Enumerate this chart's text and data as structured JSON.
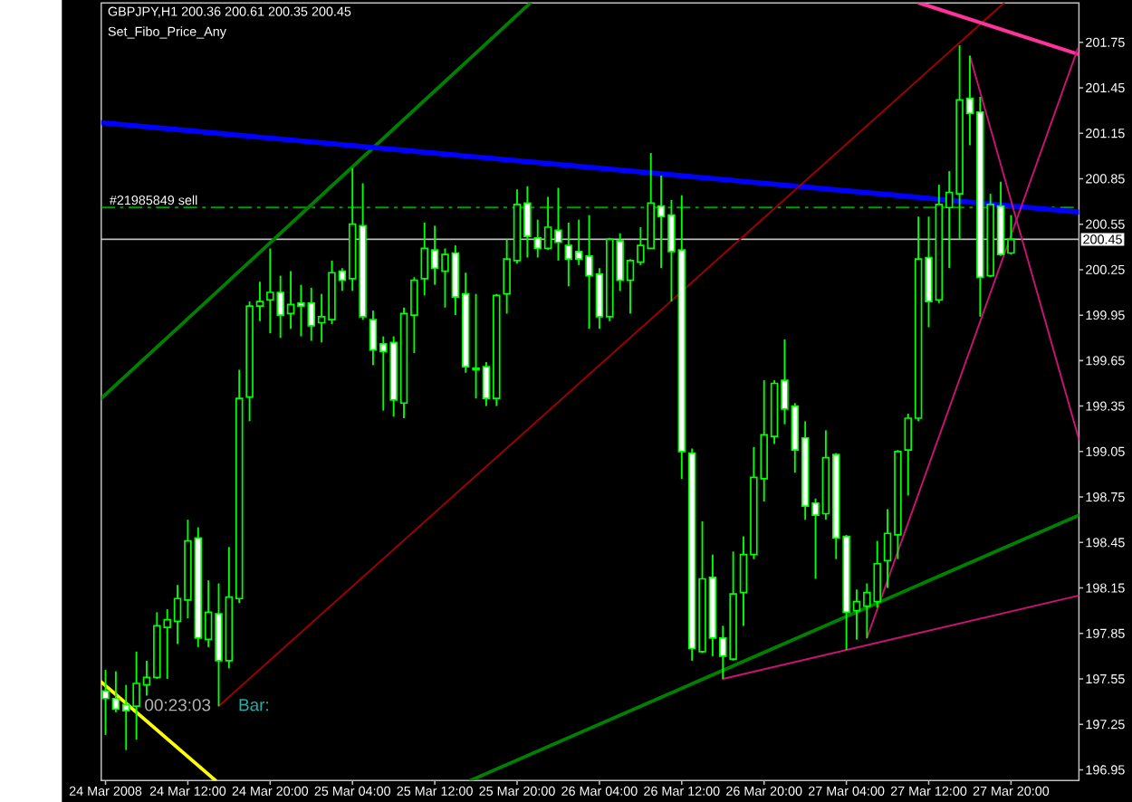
{
  "chart_data": {
    "type": "candlestick",
    "title": "GBPJPY,H1 200.36 200.61 200.35 200.45",
    "subtitle": "Set_Fibo_Price_Any",
    "annotations": [
      "00:23:03",
      "Bar:"
    ],
    "color": "#00ff00",
    "x": [
      "2008-03-24T04:00",
      "2008-03-24T05:00",
      "2008-03-24T06:00",
      "2008-03-24T07:00",
      "2008-03-24T08:00",
      "2008-03-24T09:00",
      "2008-03-24T10:00",
      "2008-03-24T11:00",
      "2008-03-24T12:00",
      "2008-03-24T13:00",
      "2008-03-24T14:00",
      "2008-03-24T15:00",
      "2008-03-24T16:00",
      "2008-03-24T17:00",
      "2008-03-24T18:00",
      "2008-03-24T19:00",
      "2008-03-24T20:00",
      "2008-03-24T21:00",
      "2008-03-24T22:00",
      "2008-03-24T23:00",
      "2008-03-25T00:00",
      "2008-03-25T01:00",
      "2008-03-25T02:00",
      "2008-03-25T03:00",
      "2008-03-25T04:00",
      "2008-03-25T05:00",
      "2008-03-25T06:00",
      "2008-03-25T07:00",
      "2008-03-25T08:00",
      "2008-03-25T09:00",
      "2008-03-25T10:00",
      "2008-03-25T11:00",
      "2008-03-25T12:00",
      "2008-03-25T13:00",
      "2008-03-25T14:00",
      "2008-03-25T15:00",
      "2008-03-25T16:00",
      "2008-03-25T17:00",
      "2008-03-25T18:00",
      "2008-03-25T19:00",
      "2008-03-25T20:00",
      "2008-03-25T21:00",
      "2008-03-25T22:00",
      "2008-03-25T23:00",
      "2008-03-26T00:00",
      "2008-03-26T01:00",
      "2008-03-26T02:00",
      "2008-03-26T03:00",
      "2008-03-26T04:00",
      "2008-03-26T05:00",
      "2008-03-26T06:00",
      "2008-03-26T07:00",
      "2008-03-26T08:00",
      "2008-03-26T09:00",
      "2008-03-26T10:00",
      "2008-03-26T11:00",
      "2008-03-26T12:00",
      "2008-03-26T13:00",
      "2008-03-26T14:00",
      "2008-03-26T15:00",
      "2008-03-26T16:00",
      "2008-03-26T17:00",
      "2008-03-26T18:00",
      "2008-03-26T19:00",
      "2008-03-26T20:00",
      "2008-03-26T21:00",
      "2008-03-26T22:00",
      "2008-03-26T23:00",
      "2008-03-27T00:00",
      "2008-03-27T01:00",
      "2008-03-27T02:00",
      "2008-03-27T03:00",
      "2008-03-27T04:00",
      "2008-03-27T05:00",
      "2008-03-27T06:00",
      "2008-03-27T07:00",
      "2008-03-27T08:00",
      "2008-03-27T09:00",
      "2008-03-27T10:00",
      "2008-03-27T11:00",
      "2008-03-27T12:00",
      "2008-03-27T13:00",
      "2008-03-27T14:00",
      "2008-03-27T15:00",
      "2008-03-27T16:00",
      "2008-03-27T17:00",
      "2008-03-27T18:00",
      "2008-03-27T19:00",
      "2008-03-27T20:00"
    ],
    "ohlc": [
      [
        197.47,
        197.61,
        197.18,
        197.42
      ],
      [
        197.42,
        197.6,
        197.33,
        197.35
      ],
      [
        197.38,
        197.51,
        197.08,
        197.34
      ],
      [
        197.37,
        197.73,
        197.15,
        197.52
      ],
      [
        197.51,
        197.67,
        197.44,
        197.56
      ],
      [
        197.56,
        197.99,
        197.55,
        197.9
      ],
      [
        197.89,
        198.01,
        197.55,
        197.94
      ],
      [
        197.93,
        198.17,
        197.78,
        198.08
      ],
      [
        198.07,
        198.6,
        197.95,
        198.46
      ],
      [
        198.48,
        198.55,
        197.76,
        197.82
      ],
      [
        197.81,
        198.2,
        197.76,
        197.99
      ],
      [
        197.98,
        198.18,
        197.37,
        197.67
      ],
      [
        197.67,
        198.42,
        197.62,
        198.09
      ],
      [
        198.08,
        199.59,
        198.05,
        199.4
      ],
      [
        199.41,
        200.04,
        199.25,
        200.01
      ],
      [
        200.01,
        200.17,
        199.91,
        200.04
      ],
      [
        200.05,
        200.39,
        199.83,
        200.1
      ],
      [
        200.1,
        200.21,
        199.8,
        199.95
      ],
      [
        199.96,
        200.24,
        199.86,
        200.02
      ],
      [
        200.03,
        200.15,
        199.81,
        200.01
      ],
      [
        200.03,
        200.13,
        199.78,
        199.88
      ],
      [
        199.9,
        200.09,
        199.77,
        199.94
      ],
      [
        199.92,
        200.31,
        199.89,
        200.23
      ],
      [
        200.24,
        200.26,
        200.11,
        200.18
      ],
      [
        200.19,
        200.92,
        200.11,
        200.55
      ],
      [
        200.54,
        200.82,
        199.92,
        199.94
      ],
      [
        199.92,
        199.98,
        199.62,
        199.72
      ],
      [
        199.76,
        199.81,
        199.32,
        199.71
      ],
      [
        199.77,
        199.81,
        199.28,
        199.39
      ],
      [
        199.37,
        200.0,
        199.27,
        199.96
      ],
      [
        199.95,
        200.2,
        199.7,
        200.18
      ],
      [
        200.19,
        200.56,
        200.08,
        200.39
      ],
      [
        200.38,
        200.54,
        200.15,
        200.26
      ],
      [
        200.24,
        200.39,
        200.0,
        200.35
      ],
      [
        200.36,
        200.41,
        199.95,
        200.07
      ],
      [
        200.09,
        200.23,
        199.57,
        199.61
      ],
      [
        199.59,
        200.09,
        199.4,
        199.6
      ],
      [
        199.61,
        199.64,
        199.35,
        199.4
      ],
      [
        199.4,
        200.09,
        199.35,
        200.08
      ],
      [
        200.09,
        200.45,
        199.96,
        200.32
      ],
      [
        200.31,
        200.78,
        200.29,
        200.68
      ],
      [
        200.69,
        200.8,
        200.33,
        200.47
      ],
      [
        200.46,
        200.58,
        200.33,
        200.39
      ],
      [
        200.39,
        200.73,
        200.38,
        200.53
      ],
      [
        200.51,
        200.79,
        200.31,
        200.43
      ],
      [
        200.41,
        200.56,
        200.14,
        200.32
      ],
      [
        200.37,
        200.58,
        200.28,
        200.32
      ],
      [
        200.34,
        200.61,
        199.86,
        200.21
      ],
      [
        200.22,
        200.26,
        199.86,
        199.94
      ],
      [
        199.94,
        200.46,
        199.91,
        200.45
      ],
      [
        200.44,
        200.49,
        200.11,
        200.18
      ],
      [
        200.18,
        200.32,
        199.96,
        200.31
      ],
      [
        200.3,
        200.53,
        200.28,
        200.41
      ],
      [
        200.39,
        201.02,
        200.39,
        200.69
      ],
      [
        200.67,
        200.87,
        200.26,
        200.6
      ],
      [
        200.61,
        200.71,
        200.04,
        200.37
      ],
      [
        200.38,
        200.74,
        198.87,
        199.05
      ],
      [
        199.04,
        199.07,
        197.67,
        197.75
      ],
      [
        197.73,
        198.59,
        197.72,
        198.21
      ],
      [
        198.22,
        198.37,
        197.7,
        197.82
      ],
      [
        197.82,
        197.9,
        197.55,
        197.7
      ],
      [
        197.68,
        198.39,
        197.67,
        198.11
      ],
      [
        198.12,
        198.49,
        197.9,
        198.37
      ],
      [
        198.37,
        199.08,
        198.34,
        198.88
      ],
      [
        198.87,
        199.52,
        198.72,
        199.16
      ],
      [
        199.15,
        199.52,
        199.1,
        199.5
      ],
      [
        199.52,
        199.79,
        199.23,
        199.33
      ],
      [
        199.35,
        199.37,
        198.91,
        199.06
      ],
      [
        199.14,
        199.25,
        198.6,
        198.69
      ],
      [
        198.71,
        198.74,
        198.21,
        198.63
      ],
      [
        198.64,
        199.19,
        198.6,
        199.01
      ],
      [
        199.03,
        199.04,
        198.34,
        198.48
      ],
      [
        198.49,
        198.5,
        197.74,
        197.99
      ],
      [
        198.0,
        198.14,
        197.81,
        198.06
      ],
      [
        198.03,
        198.18,
        197.82,
        198.12
      ],
      [
        198.06,
        198.46,
        198.02,
        198.31
      ],
      [
        198.33,
        198.67,
        198.15,
        198.51
      ],
      [
        198.5,
        199.06,
        198.34,
        199.05
      ],
      [
        199.06,
        199.3,
        198.76,
        199.27
      ],
      [
        199.27,
        200.6,
        199.25,
        200.32
      ],
      [
        200.33,
        200.6,
        199.87,
        200.04
      ],
      [
        200.05,
        200.81,
        200.03,
        200.68
      ],
      [
        200.66,
        200.9,
        200.26,
        200.76
      ],
      [
        200.75,
        201.73,
        200.45,
        201.37
      ],
      [
        201.38,
        201.66,
        201.07,
        201.28
      ],
      [
        201.29,
        201.39,
        199.94,
        200.2
      ],
      [
        200.21,
        200.75,
        200.2,
        200.68
      ],
      [
        200.67,
        200.83,
        200.34,
        200.35
      ],
      [
        200.36,
        200.61,
        200.35,
        200.45
      ]
    ],
    "series": [
      {
        "type": "line",
        "color": "#008000",
        "x": [
          "2008-03-24T03:35",
          "2008-03-25T21:17"
        ],
        "values": [
          199.4,
          202.01
        ]
      },
      {
        "type": "line",
        "color": "#0000ff",
        "x": [
          "2008-03-24T03:35",
          "2008-03-28T02:36"
        ],
        "values": [
          201.22,
          200.63
        ]
      },
      {
        "type": "line",
        "color": "#a00000",
        "x": [
          "2008-03-24T15:00",
          "2008-03-27T19:19"
        ],
        "values": [
          197.37,
          202.01
        ]
      },
      {
        "type": "line",
        "color": "#ff3399",
        "x": [
          "2008-03-27T11:04",
          "2008-03-28T02:36"
        ],
        "values": [
          202.01,
          201.67
        ]
      },
      {
        "type": "line",
        "color": "#cc1177",
        "x": [
          "2008-03-27T16:00",
          "2008-03-28T02:36"
        ],
        "values": [
          201.66,
          199.13
        ]
      },
      {
        "type": "line",
        "color": "#cc1177",
        "x": [
          "2008-03-27T06:00",
          "2008-03-28T02:30"
        ],
        "values": [
          197.82,
          201.71
        ]
      },
      {
        "type": "line",
        "color": "#cc1177",
        "x": [
          "2008-03-26T16:00",
          "2008-03-28T02:36"
        ],
        "values": [
          197.55,
          198.1
        ]
      },
      {
        "type": "line",
        "color": "#008000",
        "x": [
          "2008-03-25T15:28",
          "2008-03-28T02:36"
        ],
        "values": [
          196.88,
          198.63
        ]
      },
      {
        "type": "line",
        "color": "#ffff00",
        "x": [
          "2008-03-24T03:35",
          "2008-03-24T14:41"
        ],
        "values": [
          197.53,
          196.88
        ]
      }
    ],
    "ref_lines": [
      {
        "axis": "y",
        "value": 200.66,
        "label": "#21985849 sell",
        "color": "#00a000",
        "line_style": "dashdot"
      },
      {
        "axis": "y",
        "value": 200.45,
        "label": "200.45",
        "color": "#c0c0c0"
      }
    ],
    "xlim": [
      "2008-03-24T03:35",
      "2008-03-28T02:36"
    ],
    "ylim": [
      196.88,
      202.01
    ],
    "xticks": [
      {
        "value": "2008-03-24T04:00",
        "label": "24 Mar 2008"
      },
      {
        "value": "2008-03-24T12:00",
        "label": "24 Mar 12:00"
      },
      {
        "value": "2008-03-24T20:00",
        "label": "24 Mar 20:00"
      },
      {
        "value": "2008-03-25T04:00",
        "label": "25 Mar 04:00"
      },
      {
        "value": "2008-03-25T12:00",
        "label": "25 Mar 12:00"
      },
      {
        "value": "2008-03-25T20:00",
        "label": "25 Mar 20:00"
      },
      {
        "value": "2008-03-26T04:00",
        "label": "26 Mar 04:00"
      },
      {
        "value": "2008-03-26T12:00",
        "label": "26 Mar 12:00"
      },
      {
        "value": "2008-03-26T20:00",
        "label": "26 Mar 20:00"
      },
      {
        "value": "2008-03-27T04:00",
        "label": "27 Mar 04:00"
      },
      {
        "value": "2008-03-27T12:00",
        "label": "27 Mar 12:00"
      },
      {
        "value": "2008-03-27T20:00",
        "label": "27 Mar 20:00"
      }
    ],
    "yticks": [
      196.95,
      197.25,
      197.55,
      197.85,
      198.15,
      198.45,
      198.75,
      199.05,
      199.35,
      199.65,
      199.95,
      200.25,
      200.55,
      200.85,
      201.15,
      201.45,
      201.75
    ]
  }
}
